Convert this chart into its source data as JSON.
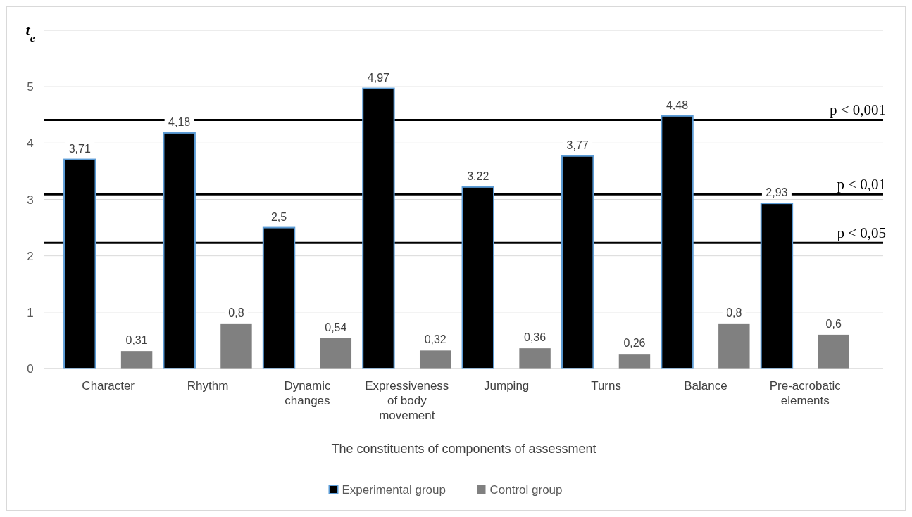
{
  "chart_data": {
    "type": "bar",
    "xlabel": "The constituents of components of assessment",
    "ylabel": "t$_{e}$",
    "categories": [
      "Character",
      "Rhythm",
      "Dynamic changes",
      "Expressiveness of body movement",
      "Jumping",
      "Turns",
      "Balance",
      "Pre-acrobatic elements"
    ],
    "series": [
      {
        "name": "Experimental group",
        "color": "#000000",
        "values": [
          3.71,
          4.18,
          2.5,
          4.97,
          3.22,
          3.77,
          4.48,
          2.93
        ],
        "value_labels": [
          "3,71",
          "4,18",
          "2,5",
          "4,97",
          "3,22",
          "3,77",
          "4,48",
          "2,93"
        ]
      },
      {
        "name": "Control group",
        "color": "#808080",
        "values": [
          0.31,
          0.8,
          0.54,
          0.32,
          0.36,
          0.26,
          0.8,
          0.6
        ],
        "value_labels": [
          "0,31",
          "0,8",
          "0,54",
          "0,32",
          "0,36",
          "0,26",
          "0,8",
          "0,6"
        ]
      }
    ],
    "ylim": [
      0,
      6
    ],
    "yticks": [
      0,
      1,
      2,
      3,
      4,
      5,
      {
        "value": 6,
        "label": null
      }
    ],
    "grid": true,
    "legend": "bottom",
    "ref_lines": [
      {
        "axis": "y",
        "value": 4.41,
        "label": "p < 0,001",
        "color": "#000000"
      },
      {
        "axis": "y",
        "value": 3.09,
        "label": "p < 0,01",
        "color": "#000000"
      },
      {
        "axis": "y",
        "value": 2.23,
        "label": "p < 0,05",
        "color": "#000000"
      }
    ]
  }
}
